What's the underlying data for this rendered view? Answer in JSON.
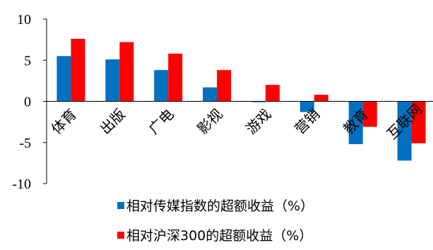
{
  "chart_data": {
    "type": "bar",
    "categories": [
      "体育",
      "出版",
      "广电",
      "影视",
      "游戏",
      "营销",
      "教育",
      "互联网"
    ],
    "series": [
      {
        "name": "相对传媒指数的超额收益（%）",
        "color": "#0070C0",
        "values": [
          5.5,
          5.1,
          3.8,
          1.7,
          -0.1,
          -1.3,
          -5.2,
          -7.2
        ]
      },
      {
        "name": "相对沪深300的超额收益（%）",
        "color": "#FF0000",
        "values": [
          7.6,
          7.2,
          5.8,
          3.8,
          2.0,
          0.8,
          -3.1,
          -5.1
        ]
      }
    ],
    "yticks": [
      "10",
      "5",
      "0",
      "-5",
      "-10"
    ],
    "ylim": [
      -10,
      10
    ],
    "grid": false,
    "legend_position": "bottom"
  }
}
